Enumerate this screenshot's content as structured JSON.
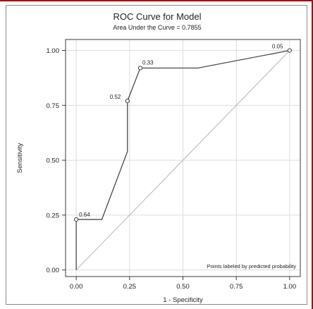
{
  "colors": {
    "frame_accent": "#8b1a1a",
    "roc_line": "#3a3a3a",
    "reference_line": "#b5b5b5",
    "grid": "#dcdcdc",
    "border": "#8c8c8c"
  },
  "chart_data": {
    "type": "line",
    "title": "ROC Curve for Model",
    "subtitle": "Area Under the Curve = 0.7855",
    "xlabel": "1 - Specificity",
    "ylabel": "Sensitivity",
    "xlim": [
      -0.05,
      1.05
    ],
    "ylim": [
      -0.03,
      1.05
    ],
    "grid": true,
    "xticks": [
      "0.00",
      "0.25",
      "0.50",
      "0.75",
      "1.00"
    ],
    "yticks": [
      "0.00",
      "0.25",
      "0.50",
      "0.75",
      "1.00"
    ],
    "note": "Points labeled by predicted probability",
    "series": [
      {
        "x": [
          0.0,
          0.0,
          0.12,
          0.24,
          0.24,
          0.3,
          0.57,
          1.0
        ],
        "y": [
          0.0,
          0.23,
          0.23,
          0.54,
          0.77,
          0.92,
          0.92,
          1.0
        ]
      }
    ],
    "reference_line": {
      "x": [
        0,
        1
      ],
      "y": [
        0,
        1
      ]
    },
    "labeled_points": [
      {
        "x": 0.0,
        "y": 0.23,
        "label": "0.64"
      },
      {
        "x": 0.24,
        "y": 0.77,
        "label": "0.52"
      },
      {
        "x": 0.3,
        "y": 0.92,
        "label": "0.33"
      },
      {
        "x": 1.0,
        "y": 1.0,
        "label": "0.05"
      }
    ]
  }
}
